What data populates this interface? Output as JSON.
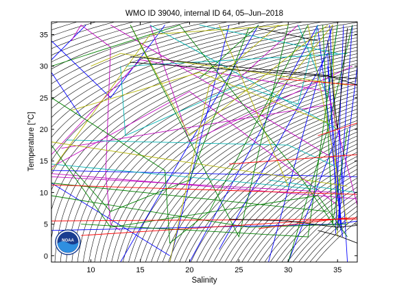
{
  "chart_data": {
    "type": "scatter",
    "title": "WMO ID 39040, internal ID 64, 05–Jun–2018",
    "xlabel": "Salinity",
    "ylabel": "Temperature [°C]",
    "xlim": [
      6,
      37
    ],
    "ylim": [
      -1,
      37
    ],
    "xticks": [
      10,
      15,
      20,
      25,
      30,
      35
    ],
    "yticks": [
      0,
      5,
      10,
      15,
      20,
      25,
      30,
      35
    ],
    "xtick_labels": [
      "10",
      "15",
      "20",
      "25",
      "30",
      "35"
    ],
    "ytick_labels": [
      "0",
      "5",
      "10",
      "15",
      "20",
      "25",
      "30",
      "35"
    ],
    "grid": false,
    "logo": {
      "text": "NOAA",
      "position": "bottom-left"
    },
    "density_isolines": {
      "color": "#000000",
      "description_free": true,
      "sigma_values": [
        -6,
        -5.5,
        -5,
        -4.5,
        -4,
        -3.5,
        -3,
        -2.5,
        -2,
        -1.5,
        -1,
        -0.5,
        0,
        0.5,
        1,
        1.5,
        2,
        2.5,
        3,
        3.5,
        4,
        4.5,
        5,
        5.5,
        6,
        6.5,
        7,
        7.5,
        8,
        8.5,
        9,
        9.5,
        10,
        10.5,
        11,
        11.5,
        12,
        12.5,
        13,
        13.5,
        14,
        14.5,
        15,
        15.5,
        16,
        16.5,
        17,
        17.5,
        18,
        18.5,
        19,
        19.5,
        20,
        20.5,
        21,
        21.5,
        22,
        22.5,
        23,
        23.5,
        24,
        24.5,
        25,
        25.5,
        26,
        26.5,
        27,
        27.5,
        28,
        28.5
      ]
    },
    "series": [
      {
        "color": "#0000ff",
        "points": [
          [
            6,
            34
          ],
          [
            12,
            25
          ],
          [
            17.5,
            36.5
          ]
        ]
      },
      {
        "color": "#0000ff",
        "points": [
          [
            9.5,
            36.5
          ],
          [
            6,
            31
          ]
        ]
      },
      {
        "color": "#0000ff",
        "points": [
          [
            6,
            29
          ],
          [
            9,
            22
          ]
        ]
      },
      {
        "color": "#0000ff",
        "points": [
          [
            6,
            11.5
          ],
          [
            18,
            0
          ]
        ]
      },
      {
        "color": "#0000ff",
        "points": [
          [
            13,
            -1
          ],
          [
            27,
            36.5
          ]
        ]
      },
      {
        "color": "#0000ff",
        "points": [
          [
            18,
            -1
          ],
          [
            24,
            36.5
          ]
        ]
      },
      {
        "color": "#0000ff",
        "points": [
          [
            20,
            -1
          ],
          [
            33,
            36.5
          ]
        ]
      },
      {
        "color": "#0000ff",
        "points": [
          [
            23,
            1
          ],
          [
            34,
            32
          ],
          [
            35,
            5
          ]
        ]
      },
      {
        "color": "#0000ff",
        "points": [
          [
            28,
            -1
          ],
          [
            34.5,
            36.5
          ]
        ]
      },
      {
        "color": "#0000ff",
        "points": [
          [
            30,
            -1
          ],
          [
            35.2,
            20
          ],
          [
            36,
            -1
          ]
        ]
      },
      {
        "color": "#0000ff",
        "points": [
          [
            36.5,
            36.5
          ],
          [
            35,
            4
          ],
          [
            37,
            30
          ]
        ]
      },
      {
        "color": "#0000ff",
        "points": [
          [
            6,
            13.5
          ],
          [
            37,
            12.5
          ]
        ]
      },
      {
        "color": "#0000ff",
        "points": [
          [
            6,
            4
          ],
          [
            35,
            5
          ],
          [
            37,
            5.5
          ]
        ]
      },
      {
        "color": "#0000ff",
        "points": [
          [
            33,
            36
          ],
          [
            35.5,
            3
          ],
          [
            34,
            30
          ]
        ]
      },
      {
        "color": "#0000ff",
        "points": [
          [
            34.2,
            36.5
          ],
          [
            35.3,
            4
          ]
        ]
      },
      {
        "color": "#0000ff",
        "points": [
          [
            35.6,
            36.5
          ],
          [
            34.8,
            3.5
          ]
        ]
      },
      {
        "color": "#c000c0",
        "points": [
          [
            8,
            34
          ],
          [
            9,
            36.5
          ],
          [
            12,
            33
          ],
          [
            11.5,
            13
          ],
          [
            12,
            5
          ],
          [
            13,
            4
          ]
        ]
      },
      {
        "color": "#c000c0",
        "points": [
          [
            6,
            14
          ],
          [
            20,
            26
          ],
          [
            35,
            8
          ]
        ]
      },
      {
        "color": "#c000c0",
        "points": [
          [
            6,
            12.5
          ],
          [
            35,
            10
          ]
        ]
      },
      {
        "color": "#c000c0",
        "points": [
          [
            6,
            16
          ],
          [
            15,
            31
          ],
          [
            34,
            26
          ],
          [
            37,
            8
          ]
        ]
      },
      {
        "color": "#c000c0",
        "points": [
          [
            7,
            17
          ],
          [
            34.5,
            24
          ]
        ]
      },
      {
        "color": "#c000c0",
        "points": [
          [
            12,
            36.5
          ],
          [
            35,
            15
          ]
        ]
      },
      {
        "color": "#c000c0",
        "points": [
          [
            16,
            36.5
          ],
          [
            20,
            18
          ],
          [
            36.5,
            30
          ]
        ]
      },
      {
        "color": "#c000c0",
        "points": [
          [
            25,
            28
          ],
          [
            31,
            36.5
          ]
        ]
      },
      {
        "color": "#c000c0",
        "points": [
          [
            6,
            13
          ],
          [
            37,
            9
          ]
        ]
      },
      {
        "color": "#00b4b4",
        "points": [
          [
            7.5,
            18.3
          ],
          [
            30,
            17.5
          ],
          [
            35,
            14
          ]
        ]
      },
      {
        "color": "#00b4b4",
        "points": [
          [
            13,
            30
          ],
          [
            13.5,
            19
          ],
          [
            25,
            27
          ],
          [
            31,
            24
          ],
          [
            33,
            36.5
          ]
        ]
      },
      {
        "color": "#00b4b4",
        "points": [
          [
            13.5,
            30
          ],
          [
            36,
            32
          ]
        ]
      },
      {
        "color": "#00b4b4",
        "points": [
          [
            6,
            14.5
          ],
          [
            33,
            10.5
          ]
        ]
      },
      {
        "color": "#00b4b4",
        "points": [
          [
            16,
            36.5
          ],
          [
            35,
            20
          ]
        ]
      },
      {
        "color": "#00b4b4",
        "points": [
          [
            21,
            36.5
          ],
          [
            35,
            32
          ]
        ]
      },
      {
        "color": "#00b4b4",
        "points": [
          [
            31,
            36.5
          ],
          [
            34,
            25
          ],
          [
            35,
            36.5
          ]
        ]
      },
      {
        "color": "#00b4b4",
        "points": [
          [
            28,
            12
          ],
          [
            37,
            10
          ]
        ]
      },
      {
        "color": "#b4b400",
        "points": [
          [
            6,
            13.5
          ],
          [
            16,
            35
          ],
          [
            30,
            36.5
          ]
        ]
      },
      {
        "color": "#b4b400",
        "points": [
          [
            10,
            30
          ],
          [
            13,
            32
          ],
          [
            36,
            27
          ]
        ]
      },
      {
        "color": "#b4b400",
        "points": [
          [
            8,
            23
          ],
          [
            21,
            29
          ],
          [
            34,
            21
          ]
        ]
      },
      {
        "color": "#b4b400",
        "points": [
          [
            14,
            36.5
          ],
          [
            20,
            19
          ],
          [
            34,
            36.5
          ]
        ]
      },
      {
        "color": "#b4b400",
        "points": [
          [
            18,
            -1
          ],
          [
            22,
            27
          ],
          [
            29,
            36.5
          ]
        ]
      },
      {
        "color": "#b4b400",
        "points": [
          [
            23,
            36.5
          ],
          [
            30,
            11
          ]
        ]
      },
      {
        "color": "#b4b400",
        "points": [
          [
            27,
            22
          ],
          [
            34.5,
            36.5
          ],
          [
            35,
            3
          ]
        ]
      },
      {
        "color": "#b4b400",
        "points": [
          [
            6,
            18
          ],
          [
            36,
            11
          ]
        ]
      },
      {
        "color": "#b4b400",
        "points": [
          [
            32,
            36.5
          ],
          [
            36,
            5
          ]
        ]
      },
      {
        "color": "#008000",
        "points": [
          [
            6,
            17.5
          ],
          [
            12,
            4.5
          ],
          [
            33,
            9.5
          ],
          [
            36,
            3
          ]
        ]
      },
      {
        "color": "#008000",
        "points": [
          [
            6,
            25
          ],
          [
            17.5,
            13.5
          ],
          [
            18,
            2
          ],
          [
            22,
            7
          ],
          [
            32,
            36.5
          ]
        ]
      },
      {
        "color": "#008000",
        "points": [
          [
            6,
            11.5
          ],
          [
            34,
            7
          ]
        ]
      },
      {
        "color": "#008000",
        "points": [
          [
            6,
            30
          ],
          [
            19,
            36.5
          ]
        ]
      },
      {
        "color": "#008000",
        "points": [
          [
            9,
            5
          ],
          [
            32,
            3
          ],
          [
            35,
            36.5
          ]
        ]
      },
      {
        "color": "#008000",
        "points": [
          [
            8,
            14
          ],
          [
            12,
            7
          ],
          [
            20,
            12
          ],
          [
            26,
            36
          ]
        ]
      },
      {
        "color": "#008000",
        "points": [
          [
            6,
            9.5
          ],
          [
            26,
            4.5
          ],
          [
            36,
            5
          ]
        ]
      },
      {
        "color": "#008000",
        "points": [
          [
            14,
            36.5
          ],
          [
            25,
            3
          ],
          [
            30,
            36.5
          ]
        ]
      },
      {
        "color": "#008000",
        "points": [
          [
            19,
            36.5
          ],
          [
            31,
            13
          ],
          [
            35,
            4
          ]
        ]
      },
      {
        "color": "#008000",
        "points": [
          [
            21,
            28
          ],
          [
            27,
            36.5
          ]
        ]
      },
      {
        "color": "#008000",
        "points": [
          [
            33.5,
            36.5
          ],
          [
            34.5,
            5
          ],
          [
            36,
            20
          ]
        ]
      },
      {
        "color": "#008000",
        "points": [
          [
            30,
            -1
          ],
          [
            34,
            20
          ],
          [
            36.5,
            36.5
          ]
        ]
      },
      {
        "color": "#ff0000",
        "points": [
          [
            6,
            5.5
          ],
          [
            37,
            5.8
          ]
        ]
      },
      {
        "color": "#ff0000",
        "points": [
          [
            6,
            11.2
          ],
          [
            37,
            9.7
          ]
        ]
      },
      {
        "color": "#ff0000",
        "points": [
          [
            9,
            3.2
          ],
          [
            37,
            6
          ]
        ]
      },
      {
        "color": "#ff0000",
        "points": [
          [
            24,
            14.5
          ],
          [
            37,
            16
          ]
        ]
      },
      {
        "color": "#ff0000",
        "points": [
          [
            27,
            4.3
          ],
          [
            36,
            6
          ]
        ]
      },
      {
        "color": "#ff0000",
        "points": [
          [
            29,
            28
          ],
          [
            37,
            27
          ]
        ]
      },
      {
        "color": "#ff0000",
        "points": [
          [
            33,
            19
          ],
          [
            37,
            21
          ]
        ]
      },
      {
        "color": "#000000",
        "points": [
          [
            14,
            31.5
          ],
          [
            34,
            28.5
          ],
          [
            37,
            27
          ]
        ]
      },
      {
        "color": "#000000",
        "points": [
          [
            14,
            30.6
          ],
          [
            37,
            28
          ]
        ]
      },
      {
        "color": "#000000",
        "points": [
          [
            24,
            5.8
          ],
          [
            30,
            5.5
          ],
          [
            35,
            4.5
          ],
          [
            37,
            4.8
          ]
        ]
      },
      {
        "color": "#000000",
        "points": [
          [
            27,
            36
          ],
          [
            33,
            34
          ]
        ]
      },
      {
        "color": "#000000",
        "points": [
          [
            33,
            4
          ],
          [
            35,
            3.2
          ],
          [
            37,
            2
          ]
        ]
      },
      {
        "color": "#000000",
        "points": [
          [
            34,
            34
          ],
          [
            35,
            20
          ],
          [
            36,
            36
          ]
        ]
      }
    ]
  }
}
